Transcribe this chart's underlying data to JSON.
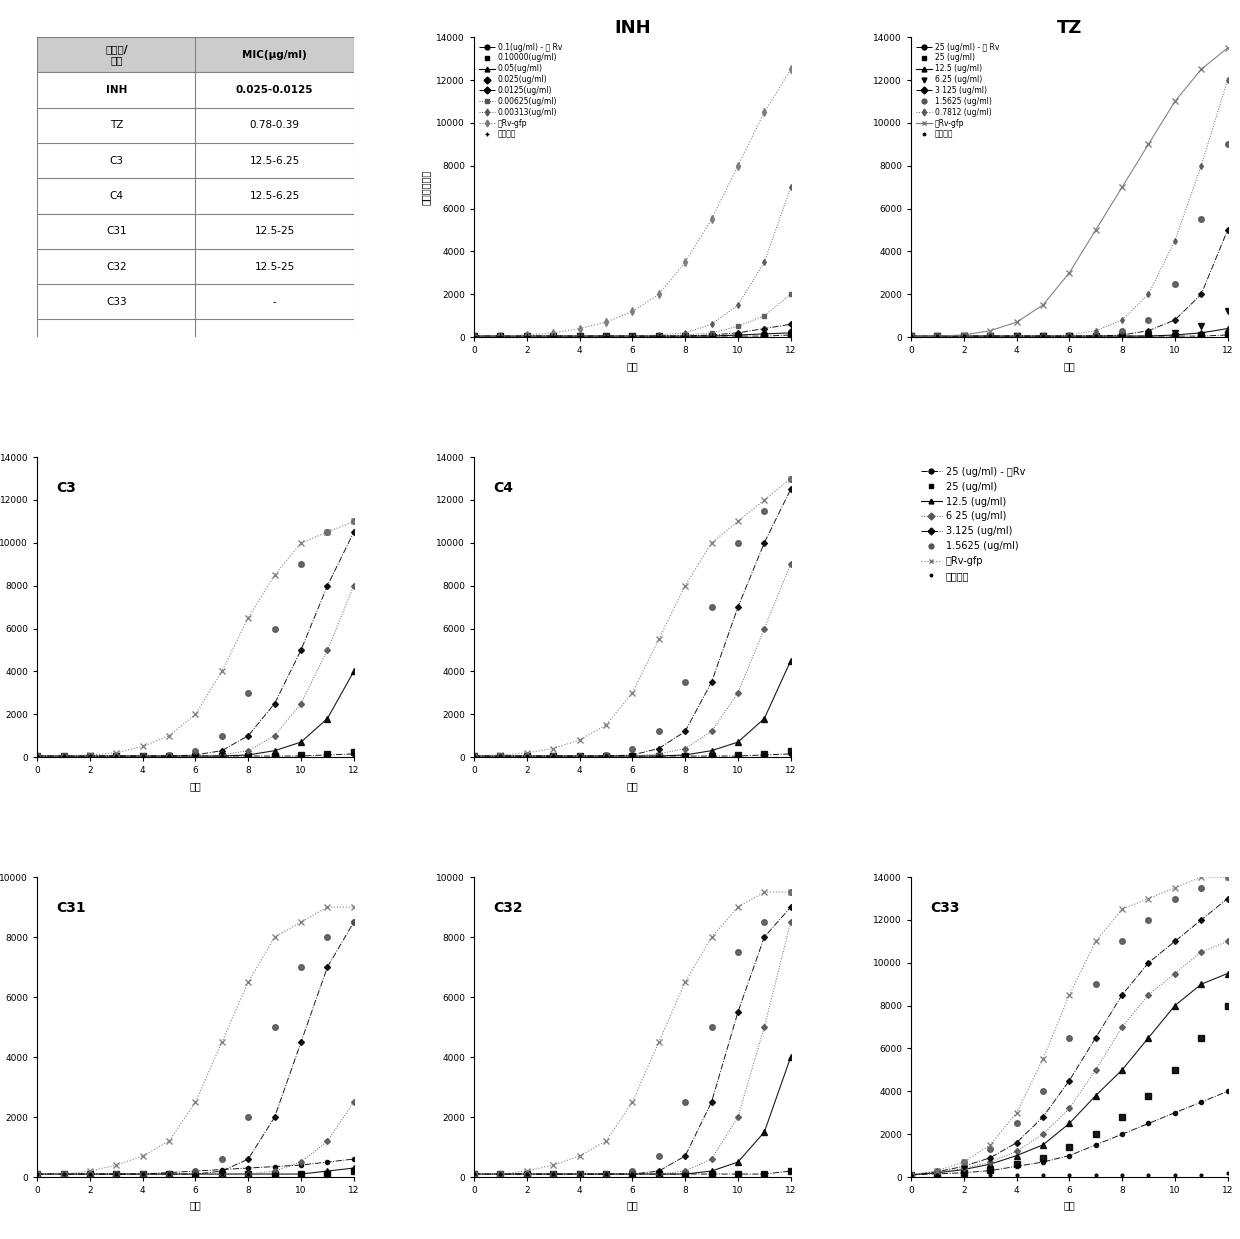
{
  "table": {
    "col1_header": "化合物/\n药物",
    "col2_header": "MIC(μg/ml)",
    "rows": [
      [
        "INH",
        "0.025-0.0125"
      ],
      [
        "TZ",
        "0.78-0.39"
      ],
      [
        "C3",
        "12.5-6.25"
      ],
      [
        "C4",
        "12.5-6.25"
      ],
      [
        "C31",
        "12.5-25"
      ],
      [
        "C32",
        "12.5-25"
      ],
      [
        "C33",
        "-"
      ]
    ]
  },
  "days": [
    0,
    1,
    2,
    3,
    4,
    5,
    6,
    7,
    8,
    9,
    10,
    11,
    12
  ],
  "INH": {
    "title": "INH",
    "ylim_max": 14000,
    "ytick_max": 14000,
    "ytick_step": 2000,
    "legend": [
      "0.1(ug/ml) - 无 Rv",
      "0.10000(ug/ml)",
      "0.05(ug/ml)",
      "0.025(ug/ml)",
      "0.0125(ug/ml)",
      "0.00625(ug/ml)",
      "0.00313(ug/ml)",
      "仅Rv-gfp",
      "仅培养基"
    ],
    "series": [
      [
        50,
        50,
        50,
        50,
        50,
        50,
        50,
        50,
        50,
        50,
        50,
        50,
        100
      ],
      [
        50,
        50,
        50,
        50,
        50,
        50,
        50,
        50,
        50,
        50,
        50,
        50,
        100
      ],
      [
        50,
        50,
        50,
        50,
        50,
        50,
        50,
        50,
        50,
        50,
        100,
        150,
        200
      ],
      [
        50,
        50,
        50,
        50,
        50,
        50,
        50,
        50,
        50,
        50,
        100,
        200,
        300
      ],
      [
        50,
        50,
        50,
        50,
        50,
        50,
        50,
        50,
        50,
        100,
        200,
        400,
        600
      ],
      [
        50,
        50,
        50,
        50,
        50,
        50,
        50,
        50,
        100,
        200,
        500,
        1000,
        2000
      ],
      [
        50,
        50,
        50,
        50,
        50,
        50,
        50,
        100,
        200,
        600,
        1500,
        3500,
        7000
      ],
      [
        50,
        50,
        100,
        200,
        400,
        700,
        1200,
        2000,
        3500,
        5500,
        8000,
        10500,
        12500
      ],
      [
        50,
        50,
        50,
        50,
        50,
        50,
        50,
        50,
        50,
        50,
        50,
        50,
        100
      ]
    ]
  },
  "TZ": {
    "title": "TZ",
    "ylim_max": 14000,
    "ytick_max": 14000,
    "ytick_step": 2000,
    "legend": [
      "25 (ug/ml) - 无 Rv",
      "25 (ug/ml)",
      "12.5 (ug/ml)",
      "6.25 (ug/ml)",
      "3 125 (ug/ml)",
      "1.5625 (ug/ml)",
      "0.7812 (ug/ml)",
      "仅Rv-gfp",
      "仅培养基"
    ],
    "series": [
      [
        50,
        50,
        50,
        50,
        50,
        50,
        50,
        50,
        50,
        50,
        50,
        50,
        100
      ],
      [
        50,
        50,
        50,
        50,
        50,
        50,
        50,
        50,
        50,
        50,
        50,
        100,
        150
      ],
      [
        50,
        50,
        50,
        50,
        50,
        50,
        50,
        50,
        50,
        50,
        100,
        200,
        400
      ],
      [
        50,
        50,
        50,
        50,
        50,
        50,
        50,
        50,
        50,
        100,
        200,
        500,
        1200
      ],
      [
        50,
        50,
        50,
        50,
        50,
        50,
        50,
        50,
        100,
        300,
        800,
        2000,
        5000
      ],
      [
        50,
        50,
        50,
        50,
        50,
        50,
        50,
        100,
        300,
        800,
        2500,
        5500,
        9000
      ],
      [
        50,
        50,
        50,
        50,
        50,
        50,
        100,
        300,
        800,
        2000,
        4500,
        8000,
        12000
      ],
      [
        50,
        50,
        100,
        300,
        700,
        1500,
        3000,
        5000,
        7000,
        9000,
        11000,
        12500,
        13500
      ],
      [
        50,
        50,
        50,
        50,
        50,
        50,
        50,
        50,
        50,
        50,
        50,
        50,
        100
      ]
    ]
  },
  "C3": {
    "title": "C3",
    "ylim_max": 14000,
    "ytick_max": 14000,
    "ytick_step": 2000,
    "legend": [
      "25 (ug/ml) - 无Rv",
      "25 (ug/ml)",
      "12.5 (ug/ml)",
      "6 25 (ug/ml)",
      "3.125 (ug/ml)",
      "1.5625 (ug/ml)",
      "仅Rv-gfp",
      "仅培养基"
    ],
    "series": [
      [
        50,
        50,
        50,
        50,
        50,
        50,
        50,
        50,
        50,
        50,
        50,
        100,
        150
      ],
      [
        50,
        50,
        50,
        50,
        50,
        50,
        50,
        50,
        50,
        50,
        100,
        150,
        250
      ],
      [
        50,
        50,
        50,
        50,
        50,
        50,
        50,
        50,
        100,
        300,
        700,
        1800,
        4000
      ],
      [
        50,
        50,
        50,
        50,
        50,
        50,
        50,
        100,
        300,
        1000,
        2500,
        5000,
        8000
      ],
      [
        50,
        50,
        50,
        50,
        50,
        50,
        100,
        300,
        1000,
        2500,
        5000,
        8000,
        10500
      ],
      [
        50,
        50,
        50,
        50,
        50,
        100,
        300,
        1000,
        3000,
        6000,
        9000,
        10500,
        11000
      ],
      [
        50,
        50,
        100,
        200,
        500,
        1000,
        2000,
        4000,
        6500,
        8500,
        10000,
        10500,
        11000
      ],
      [
        50,
        50,
        50,
        50,
        50,
        50,
        50,
        50,
        50,
        50,
        50,
        100,
        150
      ]
    ]
  },
  "C4": {
    "title": "C4",
    "ylim_max": 14000,
    "ytick_max": 14000,
    "ytick_step": 2000,
    "legend": [
      "25 (ug/ml) - 无Rv",
      "25 (ug/ml)",
      "12.5 (ug/ml)",
      "6 25 (ug/ml)",
      "3.125 (ug/ml)",
      "1.5625 (ug/ml)",
      "仅Rv-gfp",
      "仅培养基"
    ],
    "series": [
      [
        50,
        50,
        50,
        50,
        50,
        50,
        50,
        50,
        50,
        50,
        50,
        100,
        150
      ],
      [
        50,
        50,
        50,
        50,
        50,
        50,
        50,
        50,
        50,
        50,
        100,
        150,
        300
      ],
      [
        50,
        50,
        50,
        50,
        50,
        50,
        50,
        50,
        100,
        300,
        700,
        1800,
        4500
      ],
      [
        50,
        50,
        50,
        50,
        50,
        50,
        50,
        150,
        400,
        1200,
        3000,
        6000,
        9000
      ],
      [
        50,
        50,
        50,
        50,
        50,
        50,
        100,
        400,
        1200,
        3500,
        7000,
        10000,
        12500
      ],
      [
        50,
        50,
        50,
        50,
        50,
        100,
        400,
        1200,
        3500,
        7000,
        10000,
        11500,
        13000
      ],
      [
        50,
        100,
        200,
        400,
        800,
        1500,
        3000,
        5500,
        8000,
        10000,
        11000,
        12000,
        13000
      ],
      [
        50,
        50,
        50,
        50,
        50,
        50,
        50,
        50,
        50,
        50,
        50,
        100,
        150
      ]
    ]
  },
  "C31": {
    "title": "C31",
    "ylim_max": 10000,
    "ytick_max": 10000,
    "ytick_step": 2000,
    "legend": [
      "25 (ug/ml) - 无Rv",
      "25 (ug/ml)",
      "12.5 (ug/ml)",
      "6.25 (ug/ml)",
      "3.125 (ug/ml)",
      "1.5625 (ug/ml)",
      "仅Rv-gfp",
      "仅培养基"
    ],
    "series": [
      [
        100,
        100,
        100,
        100,
        100,
        150,
        200,
        250,
        300,
        350,
        400,
        500,
        600
      ],
      [
        100,
        100,
        100,
        100,
        100,
        100,
        100,
        100,
        100,
        100,
        100,
        100,
        200
      ],
      [
        100,
        100,
        100,
        100,
        100,
        100,
        100,
        100,
        100,
        100,
        100,
        200,
        300
      ],
      [
        100,
        100,
        100,
        100,
        100,
        100,
        100,
        100,
        100,
        200,
        500,
        1200,
        2500
      ],
      [
        100,
        100,
        100,
        100,
        100,
        100,
        100,
        200,
        600,
        2000,
        4500,
        7000,
        8500
      ],
      [
        100,
        100,
        100,
        100,
        100,
        100,
        200,
        600,
        2000,
        5000,
        7000,
        8000,
        8500
      ],
      [
        100,
        100,
        200,
        400,
        700,
        1200,
        2500,
        4500,
        6500,
        8000,
        8500,
        9000,
        9000
      ],
      [
        100,
        100,
        100,
        100,
        100,
        100,
        100,
        100,
        100,
        100,
        100,
        100,
        200
      ]
    ]
  },
  "C32": {
    "title": "C32",
    "ylim_max": 10000,
    "ytick_max": 10000,
    "ytick_step": 2000,
    "legend": [
      "25 (ug/ml) - 无Rv",
      "25 (ug/ml)",
      "12.5 (ug/ml)",
      "6.25 (ug/ml)",
      "3.125 (ug/ml)",
      "1.5625 (ug/ml)",
      "仅Rv-gfp",
      "仅培养基"
    ],
    "series": [
      [
        100,
        100,
        100,
        100,
        100,
        100,
        100,
        100,
        100,
        100,
        100,
        100,
        200
      ],
      [
        100,
        100,
        100,
        100,
        100,
        100,
        100,
        100,
        100,
        100,
        100,
        100,
        200
      ],
      [
        100,
        100,
        100,
        100,
        100,
        100,
        100,
        100,
        100,
        200,
        500,
        1500,
        4000
      ],
      [
        100,
        100,
        100,
        100,
        100,
        100,
        100,
        100,
        200,
        600,
        2000,
        5000,
        8500
      ],
      [
        100,
        100,
        100,
        100,
        100,
        100,
        100,
        200,
        700,
        2500,
        5500,
        8000,
        9000
      ],
      [
        100,
        100,
        100,
        100,
        100,
        100,
        200,
        700,
        2500,
        5000,
        7500,
        8500,
        9500
      ],
      [
        100,
        100,
        200,
        400,
        700,
        1200,
        2500,
        4500,
        6500,
        8000,
        9000,
        9500,
        9500
      ],
      [
        100,
        100,
        100,
        100,
        100,
        100,
        100,
        100,
        100,
        100,
        100,
        100,
        200
      ]
    ]
  },
  "C33": {
    "title": "C33",
    "ylim_max": 14000,
    "ytick_max": 14000,
    "ytick_step": 2000,
    "legend": [
      "25 (ug/ml) - 无Rv",
      "25 (ug/ml)",
      "12.5 (ug/ml)",
      "6.25 (ug/ml)",
      "3.125 (ug/ml)",
      "1.5625 (ug/ml)",
      "仅Rv-gfp",
      "仅培养基"
    ],
    "series": [
      [
        100,
        150,
        200,
        300,
        500,
        700,
        1000,
        1500,
        2000,
        2500,
        3000,
        3500,
        4000
      ],
      [
        100,
        150,
        200,
        350,
        600,
        900,
        1400,
        2000,
        2800,
        3800,
        5000,
        6500,
        8000
      ],
      [
        100,
        200,
        350,
        600,
        1000,
        1500,
        2500,
        3800,
        5000,
        6500,
        8000,
        9000,
        9500
      ],
      [
        100,
        200,
        400,
        700,
        1200,
        2000,
        3200,
        5000,
        7000,
        8500,
        9500,
        10500,
        11000
      ],
      [
        100,
        250,
        500,
        900,
        1600,
        2800,
        4500,
        6500,
        8500,
        10000,
        11000,
        12000,
        13000
      ],
      [
        100,
        300,
        700,
        1300,
        2500,
        4000,
        6500,
        9000,
        11000,
        12000,
        13000,
        13500,
        14000
      ],
      [
        100,
        300,
        700,
        1500,
        3000,
        5500,
        8500,
        11000,
        12500,
        13000,
        13500,
        14000,
        14000
      ],
      [
        100,
        100,
        100,
        100,
        100,
        100,
        100,
        100,
        100,
        100,
        100,
        100,
        200
      ]
    ]
  },
  "ylabel": "相对荧光单位",
  "xlabel": "天数"
}
